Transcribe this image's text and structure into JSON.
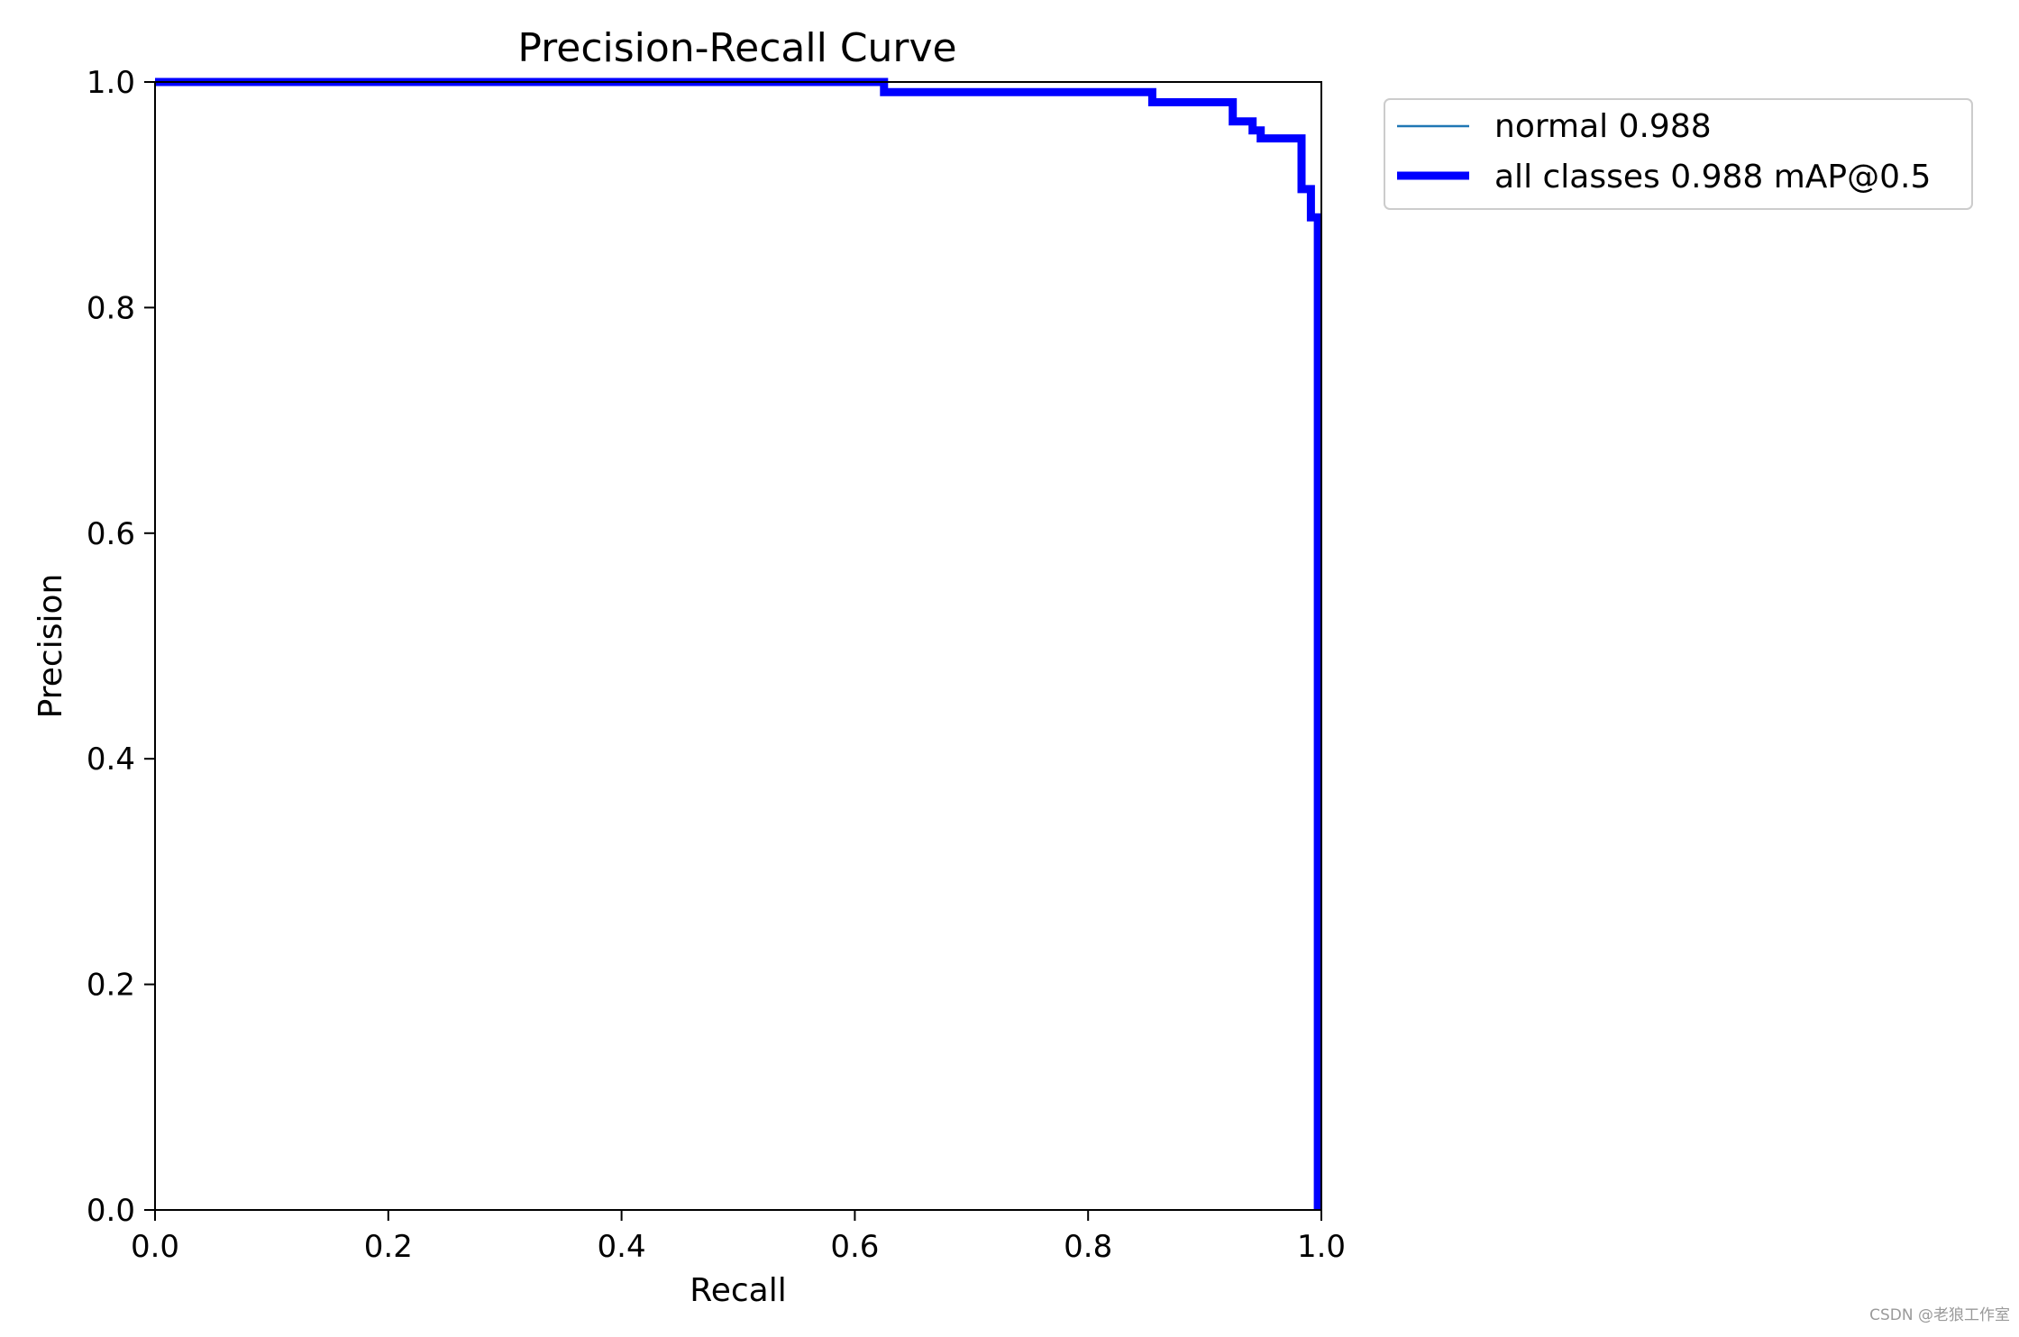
{
  "chart_data": {
    "type": "line",
    "title": "Precision-Recall Curve",
    "xlabel": "Recall",
    "ylabel": "Precision",
    "xlim": [
      0.0,
      1.0
    ],
    "ylim": [
      0.0,
      1.0
    ],
    "xticks": [
      "0.0",
      "0.2",
      "0.4",
      "0.6",
      "0.8",
      "1.0"
    ],
    "yticks": [
      "0.0",
      "0.2",
      "0.4",
      "0.6",
      "0.8",
      "1.0"
    ],
    "grid": false,
    "legend_position": "outside-top-right",
    "series": [
      {
        "name": "normal 0.988",
        "color": "#1f77b4",
        "x": [
          0.0,
          0.625,
          0.625,
          0.855,
          0.855,
          0.924,
          0.924,
          0.941,
          0.941,
          0.948,
          0.948,
          0.983,
          0.983,
          0.991,
          0.991,
          0.997,
          0.997,
          0.997
        ],
        "y": [
          1.0,
          1.0,
          0.991,
          0.991,
          0.982,
          0.982,
          0.965,
          0.965,
          0.957,
          0.957,
          0.95,
          0.95,
          0.905,
          0.905,
          0.88,
          0.88,
          0.0,
          0.0
        ]
      },
      {
        "name": "all classes 0.988 mAP@0.5",
        "color": "#0000ff",
        "x": [
          0.0,
          0.625,
          0.625,
          0.855,
          0.855,
          0.924,
          0.924,
          0.941,
          0.941,
          0.948,
          0.948,
          0.983,
          0.983,
          0.991,
          0.991,
          0.997,
          0.997,
          0.997
        ],
        "y": [
          1.0,
          1.0,
          0.991,
          0.991,
          0.982,
          0.982,
          0.965,
          0.965,
          0.957,
          0.957,
          0.95,
          0.95,
          0.905,
          0.905,
          0.88,
          0.88,
          0.0,
          0.0
        ]
      }
    ]
  },
  "watermark": "CSDN @老狼工作室"
}
